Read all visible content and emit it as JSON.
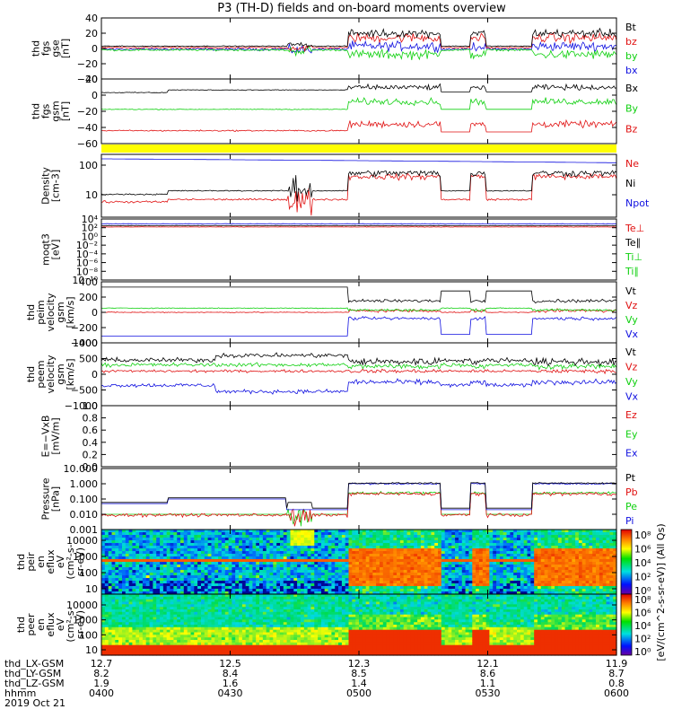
{
  "title": "P3 (TH-D) fields and on-board moments overview",
  "colors": {
    "black": "#000000",
    "red": "#e01010",
    "green": "#10d010",
    "blue": "#1010e0",
    "yellow": "#ffff00"
  },
  "chart_data": [
    {
      "type": "line",
      "name": "fgs_gse",
      "ylabel": [
        "thd",
        "fgs",
        "gse",
        "[nT]"
      ],
      "yticks": [
        "40",
        "20",
        "0",
        "−20",
        "−40"
      ],
      "ylim": [
        -40,
        40
      ],
      "legend": [
        {
          "text": "Bt",
          "color": "#000000"
        },
        {
          "text": "bz",
          "color": "#e01010"
        },
        {
          "text": "by",
          "color": "#10d010"
        },
        {
          "text": "bx",
          "color": "#1010e0"
        }
      ]
    },
    {
      "type": "line",
      "name": "fgs_gsm",
      "ylabel": [
        "thd",
        "fgs",
        "gsm",
        "[nT]"
      ],
      "yticks": [
        "20",
        "0",
        "−20",
        "−40",
        "−60"
      ],
      "ylim": [
        -70,
        30
      ],
      "legend": [
        {
          "text": "Bx",
          "color": "#000000"
        },
        {
          "text": "By",
          "color": "#10d010"
        },
        {
          "text": "Bz",
          "color": "#e01010"
        }
      ]
    },
    {
      "type": "line",
      "name": "density",
      "ylabel": [
        "Density",
        "[cm-3]"
      ],
      "yscale": "log",
      "yticks": [
        "100",
        "10"
      ],
      "ylim": [
        1,
        300
      ],
      "legend": [
        {
          "text": "Ne",
          "color": "#e01010"
        },
        {
          "text": "Ni",
          "color": "#000000"
        },
        {
          "text": "Npot",
          "color": "#1010e0"
        }
      ]
    },
    {
      "type": "line",
      "name": "temperature",
      "ylabel": [
        "moqt3",
        "[eV]"
      ],
      "yscale": "log",
      "yticks": [
        "10⁴",
        "10²",
        "10⁰",
        "10⁻²",
        "10⁻⁴",
        "10⁻⁶",
        "10⁻⁸",
        "10⁻¹⁰"
      ],
      "ylim": [
        1e-10,
        10000.0
      ],
      "legend": [
        {
          "text": "Te⊥",
          "color": "#e01010"
        },
        {
          "text": "Te∥",
          "color": "#000000"
        },
        {
          "text": "Ti⊥",
          "color": "#10d010"
        },
        {
          "text": "Ti∥",
          "color": "#10d010"
        }
      ]
    },
    {
      "type": "line",
      "name": "peim_velocity",
      "ylabel": [
        "thd",
        "peim",
        "velocity",
        "gsm",
        "[km/s]"
      ],
      "yticks": [
        "400",
        "200",
        "0",
        "−200",
        "−400"
      ],
      "ylim": [
        -400,
        400
      ],
      "legend": [
        {
          "text": "Vt",
          "color": "#000000"
        },
        {
          "text": "Vz",
          "color": "#e01010"
        },
        {
          "text": "Vy",
          "color": "#10d010"
        },
        {
          "text": "Vx",
          "color": "#1010e0"
        }
      ]
    },
    {
      "type": "line",
      "name": "peem_velocity",
      "ylabel": [
        "thd",
        "peem",
        "velocity",
        "gsm",
        "[km/s]"
      ],
      "yticks": [
        "1000",
        "500",
        "0",
        "−500",
        "−1000"
      ],
      "ylim": [
        -1000,
        1000
      ],
      "legend": [
        {
          "text": "Vt",
          "color": "#000000"
        },
        {
          "text": "Vz",
          "color": "#e01010"
        },
        {
          "text": "Vy",
          "color": "#10d010"
        },
        {
          "text": "Vx",
          "color": "#1010e0"
        }
      ]
    },
    {
      "type": "line",
      "name": "efield",
      "ylabel": [
        "E=−VxB",
        "[mV/m]"
      ],
      "yticks": [
        "1.0",
        "0.8",
        "0.6",
        "0.4",
        "0.2",
        "0.0"
      ],
      "ylim": [
        0,
        1
      ],
      "legend": [
        {
          "text": "Ez",
          "color": "#e01010"
        },
        {
          "text": "Ey",
          "color": "#10d010"
        },
        {
          "text": "Ex",
          "color": "#1010e0"
        }
      ]
    },
    {
      "type": "line",
      "name": "pressure",
      "ylabel": [
        "Pressure",
        "[nPa]"
      ],
      "yscale": "log",
      "yticks": [
        "10.000",
        "1.000",
        "0.100",
        "0.010",
        "0.001"
      ],
      "ylim": [
        0.001,
        10
      ],
      "legend": [
        {
          "text": "Pt",
          "color": "#000000"
        },
        {
          "text": "Pb",
          "color": "#e01010"
        },
        {
          "text": "Pe",
          "color": "#10d010"
        },
        {
          "text": "Pi",
          "color": "#1010e0"
        }
      ]
    },
    {
      "type": "heatmap",
      "name": "peir_en_eflux",
      "ylabel": [
        "thd",
        "peir",
        "en",
        "eflux",
        "eV",
        "(cm²-s-",
        "sr-eV)"
      ],
      "yscale": "log",
      "yticks": [
        "10000",
        "1000",
        "100",
        "10"
      ],
      "ylim": [
        5,
        30000
      ]
    },
    {
      "type": "heatmap",
      "name": "peer_en_eflux",
      "ylabel": [
        "thd",
        "peer",
        "en",
        "eflux",
        "eV",
        "(cm²-s-",
        "sr-eV)"
      ],
      "yscale": "log",
      "yticks": [
        "10000",
        "1000",
        "100",
        "10"
      ],
      "ylim": [
        5,
        30000
      ]
    }
  ],
  "colorbar": {
    "ticks": [
      "10⁸",
      "10⁶",
      "10⁴",
      "10²",
      "10⁰"
    ],
    "label": "[eV/(cm^2-s-sr-eV)] (All Qs)",
    "labels_mid": [
      "10⁸",
      "10⁶",
      "10⁴",
      "10²",
      "10⁰"
    ]
  },
  "x_axis": {
    "rows": [
      {
        "label": "thd_LX-GSM",
        "values": [
          "12.7",
          "12.5",
          "12.3",
          "12.1",
          "11.9"
        ]
      },
      {
        "label": "thd_LY-GSM",
        "values": [
          "8.2",
          "8.4",
          "8.5",
          "8.6",
          "8.7"
        ]
      },
      {
        "label": "thd_LZ-GSM",
        "values": [
          "1.9",
          "1.6",
          "1.4",
          "1.1",
          "0.8"
        ]
      },
      {
        "label": "hhmm",
        "values": [
          "0400",
          "0430",
          "0500",
          "0530",
          "0600"
        ]
      }
    ],
    "date": "2019 Oct 21"
  },
  "time_range": [
    "0400",
    "0600"
  ]
}
